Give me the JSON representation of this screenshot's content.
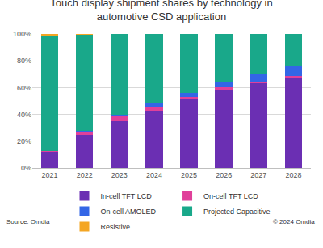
{
  "chart_data": {
    "type": "bar",
    "title": "Touch display shipment shares by technology in automotive CSD application",
    "stacked": true,
    "grid": true,
    "legend": "bottom",
    "categories": [
      "2021",
      "2022",
      "2023",
      "2024",
      "2025",
      "2026",
      "2027",
      "2028"
    ],
    "series": [
      {
        "name": "In-cell TFT LCD",
        "color": "#6B2FB3",
        "values": [
          12,
          25,
          35,
          43,
          51,
          58,
          63,
          67.5
        ]
      },
      {
        "name": "On-cell TFT LCD",
        "color": "#E0409A",
        "values": [
          0.5,
          1.5,
          3.5,
          3,
          2,
          2,
          1,
          1
        ]
      },
      {
        "name": "On-cell AMOLED",
        "color": "#3366E6",
        "values": [
          0,
          1,
          1.5,
          2,
          3,
          4,
          6,
          7.5
        ]
      },
      {
        "name": "Projected Capacitive",
        "color": "#19A88A",
        "values": [
          86.5,
          72,
          60,
          52,
          44,
          36,
          30,
          24
        ]
      },
      {
        "name": "Resistive",
        "color": "#F4A623",
        "values": [
          1,
          0.5,
          0,
          0,
          0,
          0,
          0,
          0
        ]
      }
    ],
    "ylim": [
      0,
      100
    ],
    "yticks": [
      {
        "value": 0,
        "label": "0%"
      },
      {
        "value": 20,
        "label": "20%"
      },
      {
        "value": 40,
        "label": "40%"
      },
      {
        "value": 60,
        "label": "60%"
      },
      {
        "value": 80,
        "label": "80%"
      },
      {
        "value": 100,
        "label": "100%"
      }
    ],
    "annotations": [
      "Source: Omdia",
      "© 2024 Omdia"
    ]
  }
}
